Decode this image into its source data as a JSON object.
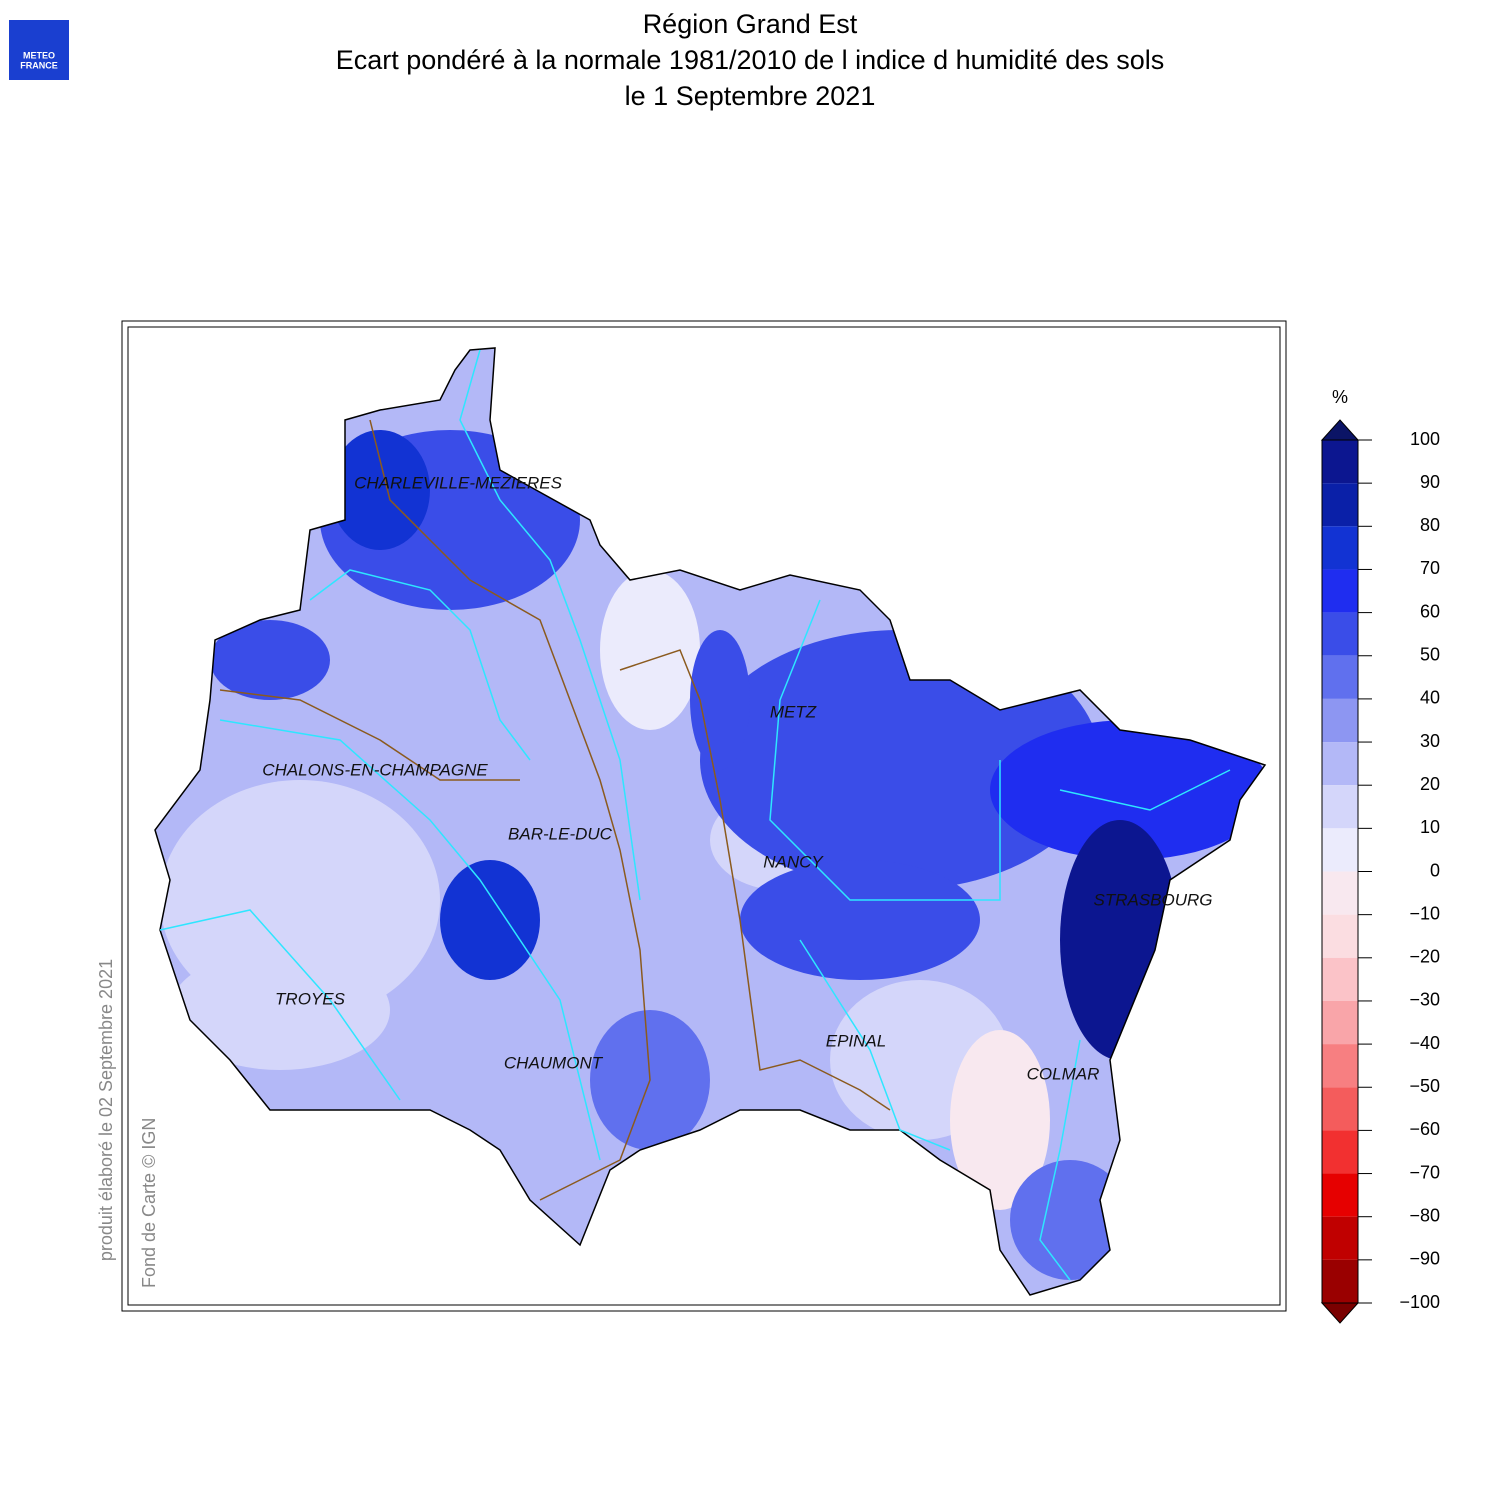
{
  "header": {
    "title": [
      "Région Grand Est",
      "Ecart pondéré à la normale 1981/2010 de l indice d humidité des sols",
      "le 1 Septembre 2021"
    ],
    "logo": [
      "METEO",
      "FRANCE"
    ]
  },
  "notes": [
    "produit élaboré le 02 Septembre 2021",
    "Fond de Carte © IGN"
  ],
  "cities": [
    "CHARLEVILLE-MEZIERES",
    "METZ",
    "CHALONS-EN-CHAMPAGNE",
    "BAR-LE-DUC",
    "NANCY",
    "STRASBOURG",
    "TROYES",
    "EPINAL",
    "CHAUMONT",
    "COLMAR"
  ],
  "legend": {
    "unit": "%",
    "ticks": [
      100,
      90,
      80,
      70,
      60,
      50,
      40,
      30,
      20,
      10,
      0,
      {
        "value": -10,
        "label": "−10"
      },
      {
        "value": -20,
        "label": "−20"
      },
      {
        "value": -30,
        "label": "−30"
      },
      {
        "value": -40,
        "label": "−40"
      },
      {
        "value": -50,
        "label": "−50"
      },
      {
        "value": -60,
        "label": "−60"
      },
      {
        "value": -70,
        "label": "−70"
      },
      {
        "value": -80,
        "label": "−80"
      },
      {
        "value": -90,
        "label": "−90"
      },
      {
        "value": -100,
        "label": "−100"
      }
    ],
    "colors": [
      "#0c1690",
      "#0a20a8",
      "#1233d3",
      "#1f2df0",
      "#3a4de8",
      "#6070ee",
      "#8d96f2",
      "#b3b8f7",
      "#d4d6fa",
      "#ebebfc",
      "#f8e8ef",
      "#fbdde1",
      "#fbc3c8",
      "#f9a5a9",
      "#f77f81",
      "#f45c5c",
      "#f23030",
      "#e60000",
      "#c00000",
      "#9a0000"
    ],
    "over_color": "#0b1466",
    "under_color": "#7a0000"
  }
}
